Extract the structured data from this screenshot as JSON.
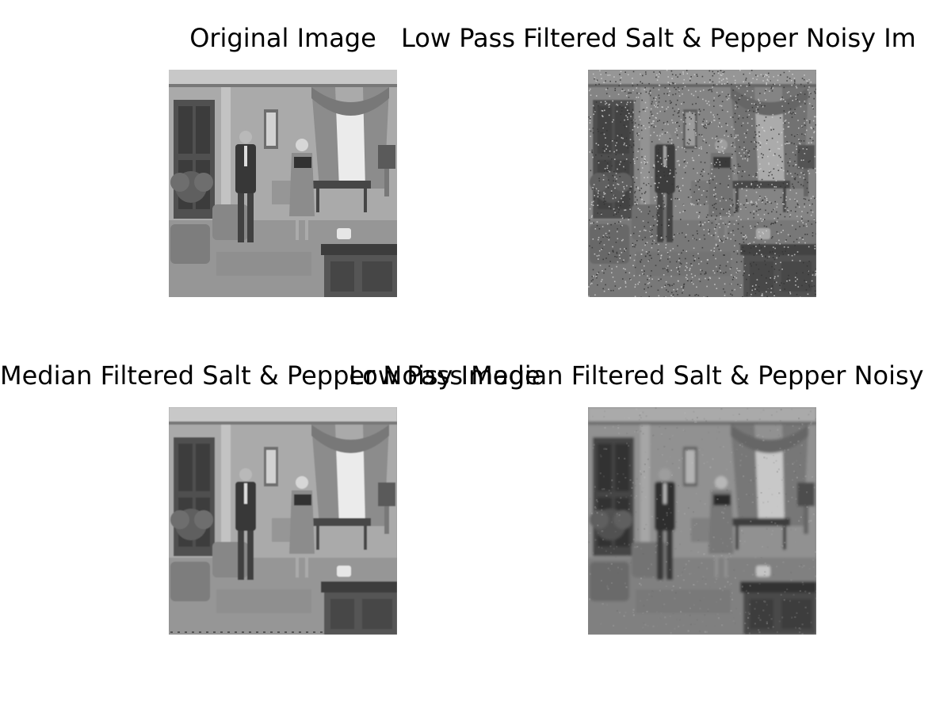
{
  "figure": {
    "panels": [
      {
        "id": "original",
        "title": "Original Image",
        "variant": "clean",
        "tone": "#9a9a9a"
      },
      {
        "id": "low-pass-noisy",
        "title": "Low Pass Filtered Salt & Pepper Noisy Im",
        "variant": "noisy",
        "tone": "#7f7f7f"
      },
      {
        "id": "median-filtered",
        "title": "Median Filtered Salt & Pepper Noisy Image",
        "variant": "median",
        "tone": "#8f8f8f"
      },
      {
        "id": "low-pass-median",
        "title": "Low Pass Median Filtered Salt & Pepper Noisy",
        "variant": "blurred",
        "tone": "#858585"
      }
    ]
  }
}
